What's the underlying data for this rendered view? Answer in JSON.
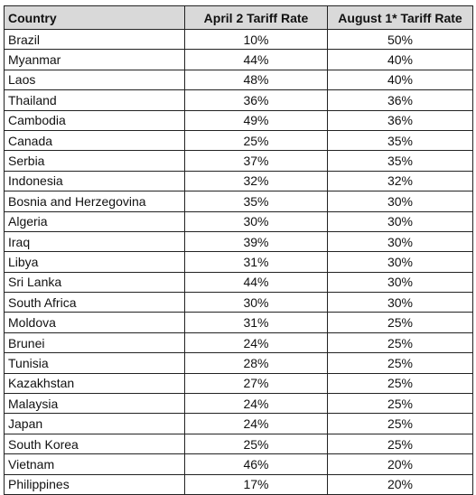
{
  "table": {
    "header": [
      "Country",
      "April 2 Tariff Rate",
      "August 1* Tariff Rate"
    ],
    "rows": [
      [
        "Brazil",
        "10%",
        "50%"
      ],
      [
        "Myanmar",
        "44%",
        "40%"
      ],
      [
        "Laos",
        "48%",
        "40%"
      ],
      [
        "Thailand",
        "36%",
        "36%"
      ],
      [
        "Cambodia",
        "49%",
        "36%"
      ],
      [
        "Canada",
        "25%",
        "35%"
      ],
      [
        "Serbia",
        "37%",
        "35%"
      ],
      [
        "Indonesia",
        "32%",
        "32%"
      ],
      [
        "Bosnia and Herzegovina",
        "35%",
        "30%"
      ],
      [
        "Algeria",
        "30%",
        "30%"
      ],
      [
        "Iraq",
        "39%",
        "30%"
      ],
      [
        "Libya",
        "31%",
        "30%"
      ],
      [
        "Sri Lanka",
        "44%",
        "30%"
      ],
      [
        "South Africa",
        "30%",
        "30%"
      ],
      [
        "Moldova",
        "31%",
        "25%"
      ],
      [
        "Brunei",
        "24%",
        "25%"
      ],
      [
        "Tunisia",
        "28%",
        "25%"
      ],
      [
        "Kazakhstan",
        "27%",
        "25%"
      ],
      [
        "Malaysia",
        "24%",
        "25%"
      ],
      [
        "Japan",
        "24%",
        "25%"
      ],
      [
        "South Korea",
        "25%",
        "25%"
      ],
      [
        "Vietnam",
        "46%",
        "20%"
      ],
      [
        "Philippines",
        "17%",
        "20%"
      ]
    ]
  }
}
